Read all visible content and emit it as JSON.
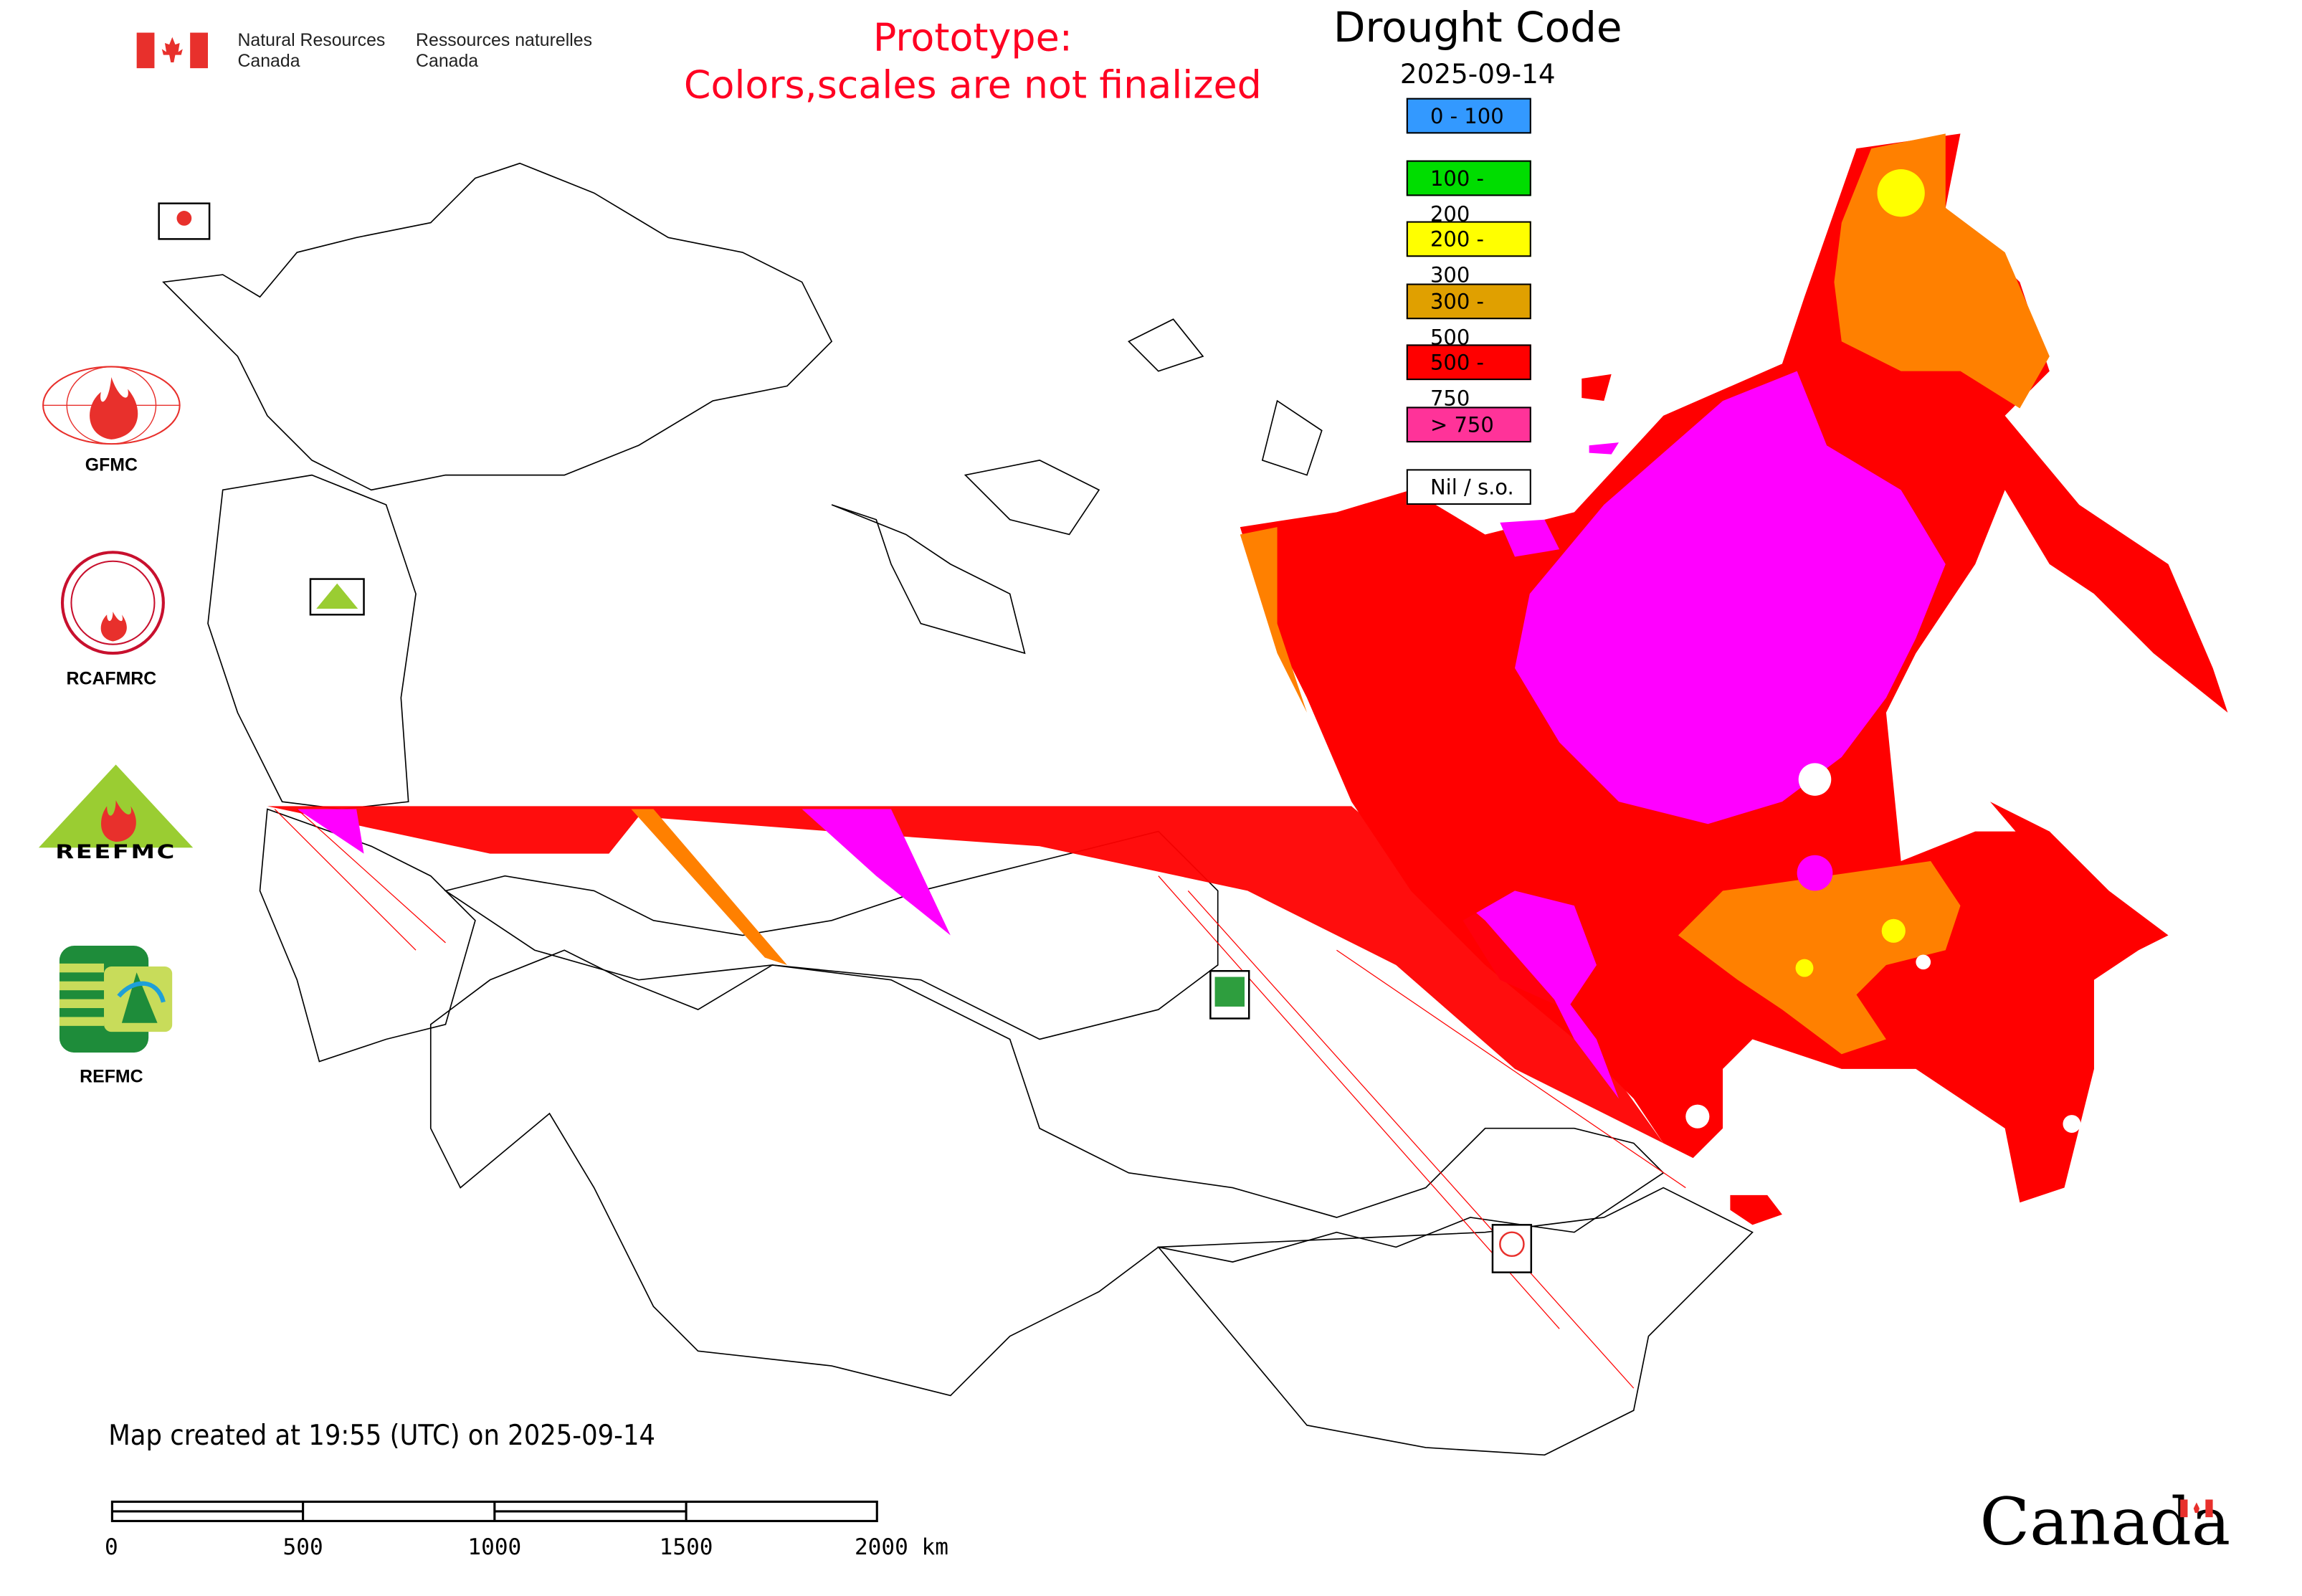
{
  "header": {
    "agency_en_line1": "Natural Resources",
    "agency_en_line2": "Canada",
    "agency_fr_line1": "Ressources naturelles",
    "agency_fr_line2": "Canada",
    "prototype_line1": "Prototype:",
    "prototype_line2": "Colors,scales are not finalized"
  },
  "legend": {
    "title": "Drought Code",
    "date": "2025-09-14",
    "classes": [
      {
        "label": "0 - 100",
        "color": "#3399ff"
      },
      {
        "label": "100 - 200",
        "color": "#00dd00"
      },
      {
        "label": "200 - 300",
        "color": "#ffff00"
      },
      {
        "label": "300 - 500",
        "color": "#e0a000"
      },
      {
        "label": "500 - 750",
        "color": "#ff0000"
      },
      {
        "label": "> 750",
        "color": "#ff3399"
      },
      {
        "label": "Nil / s.o.",
        "color": "#ffffff"
      }
    ]
  },
  "map_colors": {
    "severe": "#ff0000",
    "extreme": "#ff00ff",
    "high": "#ff8000",
    "moderate": "#ffff00",
    "outline": "#000000"
  },
  "partner_logos": [
    {
      "label": "GFMC"
    },
    {
      "label": "RCAFMRC"
    },
    {
      "label": "REEFMC"
    },
    {
      "label": "REFMC"
    }
  ],
  "footer": {
    "created": "Map created at 19:55 (UTC) on 2025-09-14",
    "scale_ticks": [
      "0",
      "500",
      "1000",
      "1500",
      "2000 km"
    ],
    "wordmark": "Canada"
  }
}
